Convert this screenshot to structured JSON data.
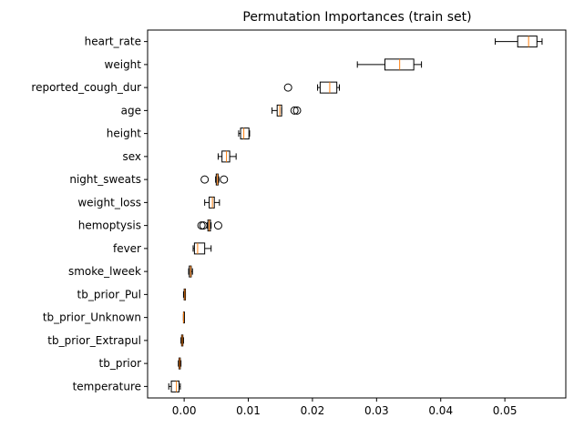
{
  "chart_data": {
    "type": "boxplot",
    "title": "Permutation Importances (train set)",
    "xlabel": "",
    "ylabel": "",
    "xlim": [
      -0.0057,
      0.0595
    ],
    "xticks": [
      "0.00",
      "0.01",
      "0.02",
      "0.03",
      "0.04",
      "0.05"
    ],
    "xtick_values": [
      0.0,
      0.01,
      0.02,
      0.03,
      0.04,
      0.05
    ],
    "grid": false,
    "colors": {
      "box": "#000000",
      "median": "#ff7f0e",
      "flier": "#000000"
    },
    "features": [
      {
        "name": "heart_rate",
        "whislo": 0.0485,
        "q1": 0.052,
        "med": 0.0537,
        "q3": 0.055,
        "whishi": 0.0558,
        "fliers": []
      },
      {
        "name": "weight",
        "whislo": 0.027,
        "q1": 0.0313,
        "med": 0.0336,
        "q3": 0.0358,
        "whishi": 0.037,
        "fliers": []
      },
      {
        "name": "reported_cough_dur",
        "whislo": 0.0208,
        "q1": 0.0212,
        "med": 0.0227,
        "q3": 0.0238,
        "whishi": 0.0242,
        "fliers": [
          0.0162
        ]
      },
      {
        "name": "age",
        "whislo": 0.0137,
        "q1": 0.0145,
        "med": 0.0149,
        "q3": 0.0152,
        "whishi": 0.0152,
        "fliers": [
          0.0172,
          0.0176
        ]
      },
      {
        "name": "height",
        "whislo": 0.0085,
        "q1": 0.0088,
        "med": 0.0093,
        "q3": 0.0101,
        "whishi": 0.0102,
        "fliers": []
      },
      {
        "name": "sex",
        "whislo": 0.0053,
        "q1": 0.0059,
        "med": 0.0066,
        "q3": 0.0071,
        "whishi": 0.0081,
        "fliers": []
      },
      {
        "name": "night_sweats",
        "whislo": 0.0049,
        "q1": 0.005,
        "med": 0.0052,
        "q3": 0.0053,
        "whishi": 0.0054,
        "fliers": [
          0.0032,
          0.0062
        ]
      },
      {
        "name": "weight_loss",
        "whislo": 0.0032,
        "q1": 0.0039,
        "med": 0.0044,
        "q3": 0.0047,
        "whishi": 0.0055,
        "fliers": []
      },
      {
        "name": "hemoptysis",
        "whislo": 0.0036,
        "q1": 0.0037,
        "med": 0.0039,
        "q3": 0.0041,
        "whishi": 0.0042,
        "fliers": [
          0.0027,
          0.003,
          0.0053
        ]
      },
      {
        "name": "fever",
        "whislo": 0.0014,
        "q1": 0.0016,
        "med": 0.0021,
        "q3": 0.0032,
        "whishi": 0.0042,
        "fliers": []
      },
      {
        "name": "smoke_lweek",
        "whislo": 0.0007,
        "q1": 0.0008,
        "med": 0.001,
        "q3": 0.0011,
        "whishi": 0.0013,
        "fliers": []
      },
      {
        "name": "tb_prior_Pul",
        "whislo": -0.0001,
        "q1": 0.0,
        "med": 0.0001,
        "q3": 0.0002,
        "whishi": 0.0002,
        "fliers": []
      },
      {
        "name": "tb_prior_Unknown",
        "whislo": -0.0001,
        "q1": -0.0001,
        "med": -0.0001,
        "q3": -0.0001,
        "whishi": -0.0001,
        "fliers": []
      },
      {
        "name": "tb_prior_Extrapul",
        "whislo": -0.0005,
        "q1": -0.0004,
        "med": -0.0003,
        "q3": -0.0002,
        "whishi": -0.0001,
        "fliers": []
      },
      {
        "name": "tb_prior",
        "whislo": -0.0009,
        "q1": -0.0008,
        "med": -0.0007,
        "q3": -0.0006,
        "whishi": -0.0005,
        "fliers": []
      },
      {
        "name": "temperature",
        "whislo": -0.0024,
        "q1": -0.002,
        "med": -0.0012,
        "q3": -0.0008,
        "whishi": -0.0006,
        "fliers": []
      }
    ]
  }
}
